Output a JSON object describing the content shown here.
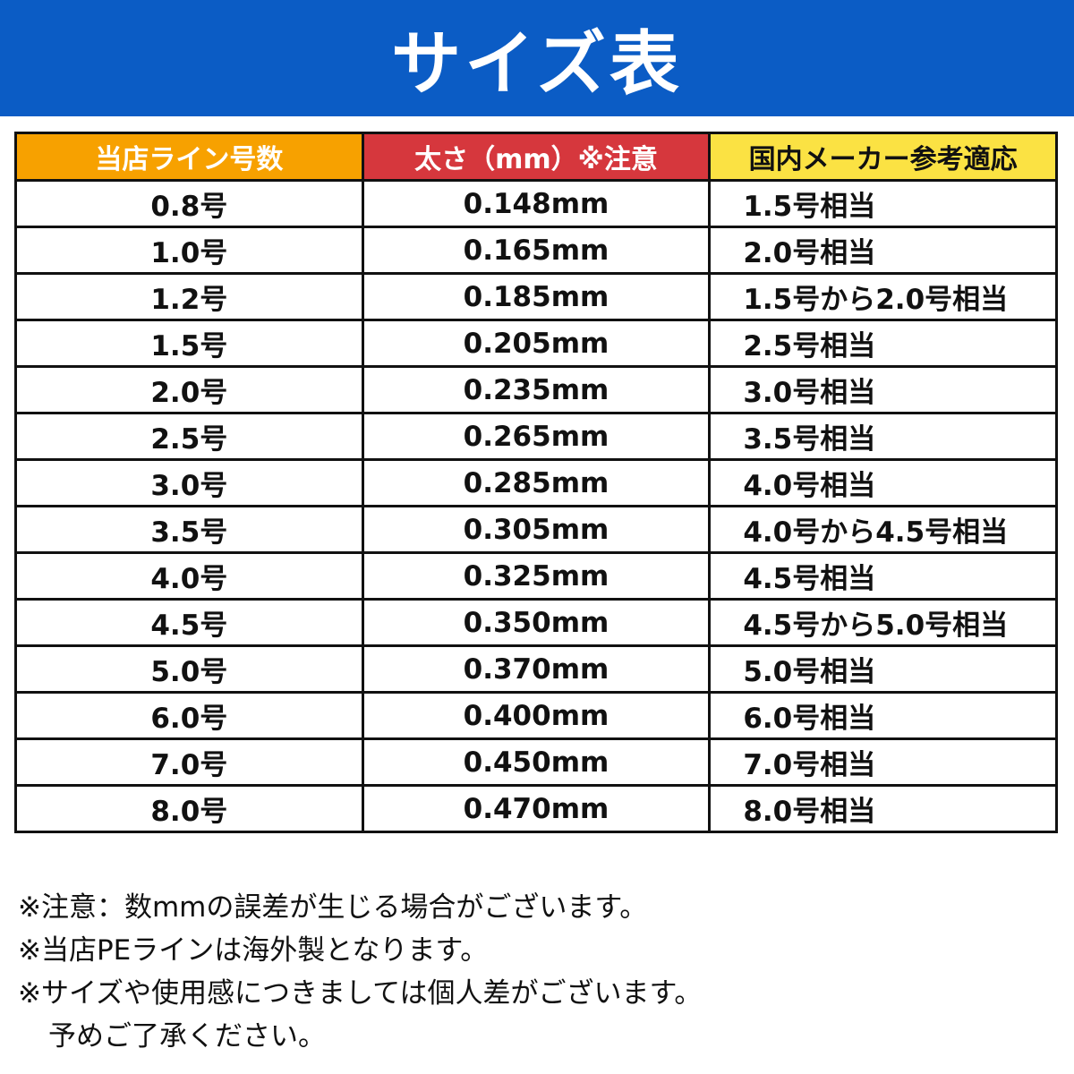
{
  "banner": {
    "title": "サイズ表",
    "color": "#0b5cc5"
  },
  "table": {
    "headers": [
      {
        "label": "当店ライン号数",
        "color": "#f7a100"
      },
      {
        "label": "太さ（mm）※注意",
        "color": "#d6373d"
      },
      {
        "label": "国内メーカー参考適応",
        "color": "#fbe243"
      }
    ],
    "rows": [
      [
        "0.8号",
        "0.148mm",
        "1.5号相当"
      ],
      [
        "1.0号",
        "0.165mm",
        "2.0号相当"
      ],
      [
        "1.2号",
        "0.185mm",
        "1.5号から2.0号相当"
      ],
      [
        "1.5号",
        "0.205mm",
        "2.5号相当"
      ],
      [
        "2.0号",
        "0.235mm",
        "3.0号相当"
      ],
      [
        "2.5号",
        "0.265mm",
        "3.5号相当"
      ],
      [
        "3.0号",
        "0.285mm",
        "4.0号相当"
      ],
      [
        "3.5号",
        "0.305mm",
        "4.0号から4.5号相当"
      ],
      [
        "4.0号",
        "0.325mm",
        "4.5号相当"
      ],
      [
        "4.5号",
        "0.350mm",
        "4.5号から5.0号相当"
      ],
      [
        "5.0号",
        "0.370mm",
        "5.0号相当"
      ],
      [
        "6.0号",
        "0.400mm",
        "6.0号相当"
      ],
      [
        "7.0号",
        "0.450mm",
        "7.0号相当"
      ],
      [
        "8.0号",
        "0.470mm",
        "8.0号相当"
      ]
    ]
  },
  "notes": [
    "※注意：数mmの誤差が生じる場合がございます。",
    "※当店PEラインは海外製となります。",
    "※サイズや使用感につきましては個人差がございます。",
    "予めご了承ください。"
  ]
}
